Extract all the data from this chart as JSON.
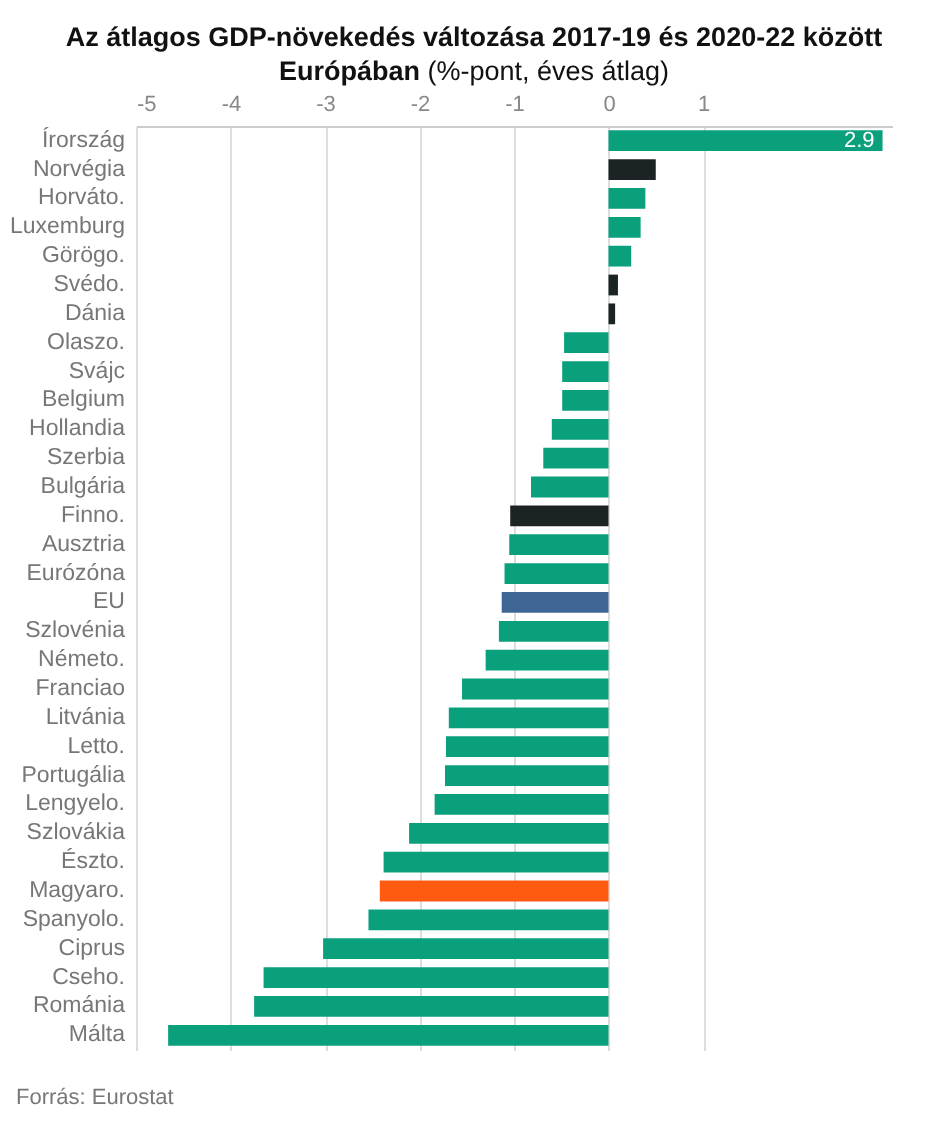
{
  "chart_data": {
    "type": "bar",
    "orientation": "horizontal",
    "title": "Az átlagos GDP-növekedés változása 2017-19 és 2020-22 között Európában",
    "subtitle": "(%-pont, éves átlag)",
    "categories": [
      "Írország",
      "Norvégia",
      "Horváto.",
      "Luxemburg",
      "Görögo.",
      "Svédo.",
      "Dánia",
      "Olaszo.",
      "Svájc",
      "Belgium",
      "Hollandia",
      "Szerbia",
      "Bulgária",
      "Finno.",
      "Ausztria",
      "Eurózóna",
      "EU",
      "Szlovénia",
      "Németo.",
      "Franciao",
      "Litvánia",
      "Letto.",
      "Portugália",
      "Lengyelo.",
      "Szlovákia",
      "Észto.",
      "Magyaro.",
      "Spanyolo.",
      "Ciprus",
      "Cseho.",
      "Románia",
      "Málta"
    ],
    "values": [
      2.9,
      0.5,
      0.39,
      0.34,
      0.24,
      0.1,
      0.07,
      -0.47,
      -0.49,
      -0.49,
      -0.6,
      -0.69,
      -0.82,
      -1.04,
      -1.05,
      -1.1,
      -1.13,
      -1.16,
      -1.3,
      -1.55,
      -1.69,
      -1.72,
      -1.73,
      -1.84,
      -2.11,
      -2.38,
      -2.42,
      -2.54,
      -3.02,
      -3.65,
      -3.75,
      -4.66
    ],
    "colors": [
      "#0aa07c",
      "#1b2324",
      "#0aa07c",
      "#0aa07c",
      "#0aa07c",
      "#1b2324",
      "#1b2324",
      "#0aa07c",
      "#0aa07c",
      "#0aa07c",
      "#0aa07c",
      "#0aa07c",
      "#0aa07c",
      "#1b2324",
      "#0aa07c",
      "#0aa07c",
      "#3d6694",
      "#0aa07c",
      "#0aa07c",
      "#0aa07c",
      "#0aa07c",
      "#0aa07c",
      "#0aa07c",
      "#0aa07c",
      "#0aa07c",
      "#0aa07c",
      "#ff5a12",
      "#0aa07c",
      "#0aa07c",
      "#0aa07c",
      "#0aa07c",
      "#0aa07c"
    ],
    "value_labels": [
      "2.9",
      null,
      null,
      null,
      null,
      null,
      null,
      null,
      null,
      null,
      null,
      null,
      null,
      null,
      null,
      null,
      null,
      null,
      null,
      null,
      null,
      null,
      null,
      null,
      null,
      null,
      null,
      null,
      null,
      null,
      null,
      null
    ],
    "xlim": [
      -5,
      3
    ],
    "xticks": [
      -5,
      -4,
      -3,
      -2,
      -1,
      0,
      1
    ],
    "grid": "x",
    "annotations": [
      "Forrás: Eurostat"
    ]
  }
}
